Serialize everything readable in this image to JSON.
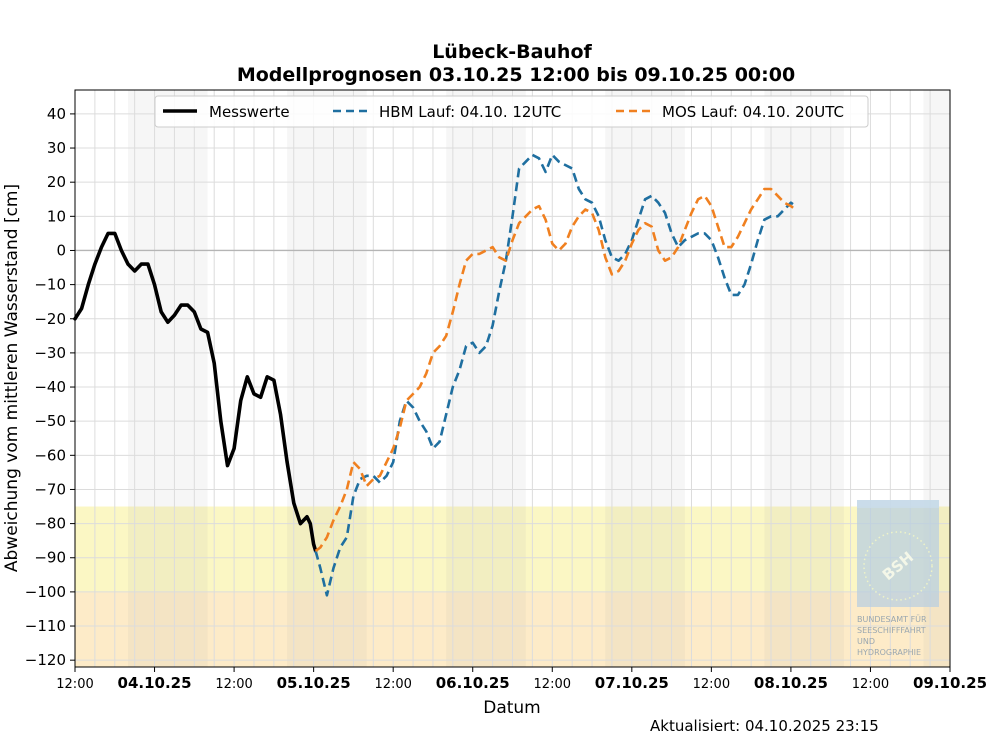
{
  "chart_data": {
    "type": "line",
    "title": "Lübeck-Bauhof",
    "subtitle": "Modellprognosen 03.10.25 12:00 bis 09.10.25 00:00",
    "xlabel": "Datum",
    "ylabel": "Abweichung vom mittleren Wasserstand [cm]",
    "updated": "Aktualisiert: 04.10.2025 23:15",
    "xlim": [
      0,
      132
    ],
    "ylim": [
      -122,
      47
    ],
    "yticks": [
      40,
      30,
      20,
      10,
      0,
      -10,
      -20,
      -30,
      -40,
      -50,
      -60,
      -70,
      -80,
      -90,
      -100,
      -110,
      -120
    ],
    "xticks": [
      {
        "h": 0,
        "label": "12:00",
        "bold": false
      },
      {
        "h": 12,
        "label": "04.10.25",
        "bold": true
      },
      {
        "h": 24,
        "label": "12:00",
        "bold": false
      },
      {
        "h": 36,
        "label": "05.10.25",
        "bold": true
      },
      {
        "h": 48,
        "label": "12:00",
        "bold": false
      },
      {
        "h": 60,
        "label": "06.10.25",
        "bold": true
      },
      {
        "h": 72,
        "label": "12:00",
        "bold": false
      },
      {
        "h": 84,
        "label": "07.10.25",
        "bold": true
      },
      {
        "h": 96,
        "label": "12:00",
        "bold": false
      },
      {
        "h": 108,
        "label": "08.10.25",
        "bold": true
      },
      {
        "h": 120,
        "label": "12:00",
        "bold": false
      },
      {
        "h": 132,
        "label": "09.10.25",
        "bold": true
      }
    ],
    "night_bands": [
      [
        8,
        20
      ],
      [
        32,
        44
      ],
      [
        56,
        68
      ],
      [
        80,
        92
      ],
      [
        104,
        116
      ],
      [
        128,
        132
      ]
    ],
    "warning_bands": [
      {
        "from": -122,
        "to": -100,
        "color": "#fdebc8"
      },
      {
        "from": -100,
        "to": -75,
        "color": "#fbf7c4"
      }
    ],
    "legend_position": "top",
    "grid": true,
    "series": [
      {
        "name": "Messwerte",
        "color": "#000000",
        "style": "solid",
        "points": [
          [
            0,
            -20
          ],
          [
            1,
            -17
          ],
          [
            2,
            -10
          ],
          [
            3,
            -4
          ],
          [
            4,
            1
          ],
          [
            5,
            5
          ],
          [
            6,
            5
          ],
          [
            7,
            0
          ],
          [
            8,
            -4
          ],
          [
            9,
            -6
          ],
          [
            10,
            -4
          ],
          [
            11,
            -4
          ],
          [
            12,
            -10
          ],
          [
            13,
            -18
          ],
          [
            14,
            -21
          ],
          [
            15,
            -19
          ],
          [
            16,
            -16
          ],
          [
            17,
            -16
          ],
          [
            18,
            -18
          ],
          [
            19,
            -23
          ],
          [
            20,
            -24
          ],
          [
            21,
            -33
          ],
          [
            22,
            -50
          ],
          [
            23,
            -63
          ],
          [
            24,
            -58
          ],
          [
            25,
            -44
          ],
          [
            26,
            -37
          ],
          [
            27,
            -42
          ],
          [
            28,
            -43
          ],
          [
            29,
            -37
          ],
          [
            30,
            -38
          ],
          [
            31,
            -48
          ],
          [
            32,
            -62
          ],
          [
            33,
            -74
          ],
          [
            34,
            -80
          ],
          [
            35,
            -78
          ],
          [
            35.5,
            -80
          ],
          [
            36,
            -86
          ],
          [
            36.3,
            -88
          ]
        ]
      },
      {
        "name": "HBM Lauf: 04.10. 12UTC",
        "color": "#1f6fa0",
        "style": "dashed",
        "points": [
          [
            36.3,
            -88
          ],
          [
            37,
            -93
          ],
          [
            38,
            -101
          ],
          [
            39,
            -93
          ],
          [
            40,
            -87
          ],
          [
            41,
            -84
          ],
          [
            42,
            -72
          ],
          [
            43,
            -67
          ],
          [
            44,
            -66
          ],
          [
            45,
            -66
          ],
          [
            46,
            -68
          ],
          [
            47,
            -66
          ],
          [
            48,
            -62
          ],
          [
            49,
            -50
          ],
          [
            50,
            -44
          ],
          [
            51,
            -46
          ],
          [
            52,
            -50
          ],
          [
            53,
            -53
          ],
          [
            54,
            -58
          ],
          [
            55,
            -56
          ],
          [
            56,
            -48
          ],
          [
            57,
            -40
          ],
          [
            58,
            -35
          ],
          [
            59,
            -28
          ],
          [
            60,
            -27
          ],
          [
            61,
            -30
          ],
          [
            62,
            -28
          ],
          [
            63,
            -22
          ],
          [
            64,
            -12
          ],
          [
            65,
            -3
          ],
          [
            66,
            10
          ],
          [
            67,
            24
          ],
          [
            68,
            26
          ],
          [
            69,
            28
          ],
          [
            70,
            27
          ],
          [
            71,
            23
          ],
          [
            72,
            28
          ],
          [
            73,
            26
          ],
          [
            74,
            25
          ],
          [
            75,
            24
          ],
          [
            76,
            18
          ],
          [
            77,
            15
          ],
          [
            78,
            14
          ],
          [
            79,
            10
          ],
          [
            80,
            3
          ],
          [
            81,
            -2
          ],
          [
            82,
            -3
          ],
          [
            83,
            -1
          ],
          [
            84,
            3
          ],
          [
            85,
            9
          ],
          [
            86,
            15
          ],
          [
            87,
            16
          ],
          [
            88,
            14
          ],
          [
            89,
            11
          ],
          [
            90,
            5
          ],
          [
            91,
            1
          ],
          [
            92,
            3
          ],
          [
            93,
            4
          ],
          [
            94,
            5
          ],
          [
            95,
            5
          ],
          [
            96,
            3
          ],
          [
            97,
            -2
          ],
          [
            98,
            -8
          ],
          [
            99,
            -13
          ],
          [
            100,
            -13
          ],
          [
            101,
            -10
          ],
          [
            102,
            -4
          ],
          [
            103,
            3
          ],
          [
            104,
            9
          ],
          [
            105,
            10
          ],
          [
            106,
            10
          ],
          [
            107,
            12
          ],
          [
            108,
            14
          ],
          [
            108.7,
            13
          ]
        ]
      },
      {
        "name": "MOS Lauf: 04.10. 20UTC",
        "color": "#f08020",
        "style": "dashed",
        "points": [
          [
            36.3,
            -88
          ],
          [
            37,
            -87
          ],
          [
            38,
            -84
          ],
          [
            39,
            -79
          ],
          [
            40,
            -75
          ],
          [
            41,
            -70
          ],
          [
            42,
            -62
          ],
          [
            43,
            -64
          ],
          [
            44,
            -69
          ],
          [
            45,
            -67
          ],
          [
            46,
            -66
          ],
          [
            47,
            -62
          ],
          [
            48,
            -58
          ],
          [
            49,
            -52
          ],
          [
            50,
            -44
          ],
          [
            51,
            -42
          ],
          [
            52,
            -40
          ],
          [
            53,
            -36
          ],
          [
            54,
            -30
          ],
          [
            55,
            -28
          ],
          [
            56,
            -25
          ],
          [
            57,
            -18
          ],
          [
            58,
            -10
          ],
          [
            59,
            -3
          ],
          [
            60,
            -1
          ],
          [
            61,
            -1
          ],
          [
            62,
            0
          ],
          [
            63,
            1
          ],
          [
            64,
            -2
          ],
          [
            65,
            -3
          ],
          [
            66,
            3
          ],
          [
            67,
            8
          ],
          [
            68,
            10
          ],
          [
            69,
            12
          ],
          [
            70,
            13
          ],
          [
            71,
            9
          ],
          [
            72,
            2
          ],
          [
            73,
            0
          ],
          [
            74,
            2
          ],
          [
            75,
            7
          ],
          [
            76,
            10
          ],
          [
            77,
            12
          ],
          [
            78,
            11
          ],
          [
            79,
            6
          ],
          [
            80,
            -2
          ],
          [
            81,
            -7
          ],
          [
            82,
            -6
          ],
          [
            83,
            -3
          ],
          [
            84,
            2
          ],
          [
            85,
            6
          ],
          [
            86,
            8
          ],
          [
            87,
            7
          ],
          [
            88,
            0
          ],
          [
            89,
            -3
          ],
          [
            90,
            -2
          ],
          [
            91,
            1
          ],
          [
            92,
            6
          ],
          [
            93,
            11
          ],
          [
            94,
            15
          ],
          [
            95,
            16
          ],
          [
            96,
            13
          ],
          [
            97,
            7
          ],
          [
            98,
            1
          ],
          [
            99,
            1
          ],
          [
            100,
            4
          ],
          [
            101,
            8
          ],
          [
            102,
            12
          ],
          [
            103,
            15
          ],
          [
            104,
            18
          ],
          [
            105,
            18
          ],
          [
            106,
            16
          ],
          [
            107,
            14
          ],
          [
            108,
            13
          ],
          [
            108.7,
            12
          ]
        ]
      }
    ]
  },
  "logo": {
    "text": "BSH",
    "caption": [
      "BUNDESAMT FÜR",
      "SEESCHIFFFAHRT",
      "UND",
      "HYDROGRAPHIE"
    ]
  }
}
